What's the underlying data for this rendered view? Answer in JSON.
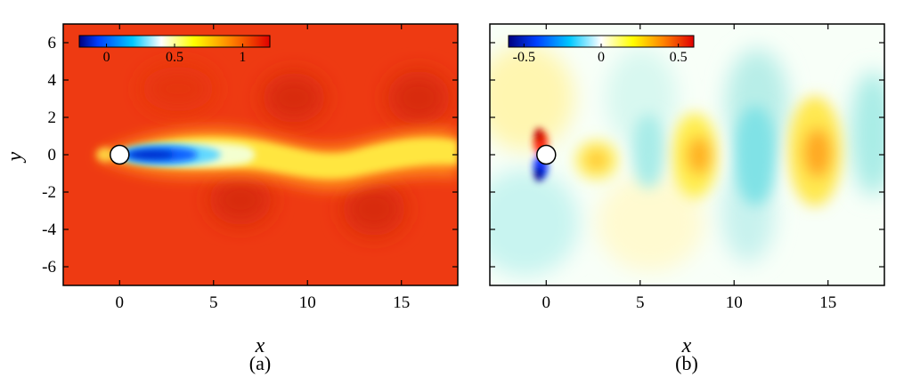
{
  "chart_data": [
    {
      "type": "heatmap",
      "caption": "(a)",
      "xlabel": "x",
      "ylabel": "y",
      "xlim": [
        -3,
        18
      ],
      "ylim": [
        -7,
        7
      ],
      "xticks": [
        0,
        5,
        10,
        15
      ],
      "yticks": [
        -6,
        -4,
        -2,
        0,
        2,
        4,
        6
      ],
      "colorbar": {
        "min": -0.2,
        "max": 1.2,
        "ticks": [
          0,
          0.5,
          1
        ],
        "tick_labels": [
          "0",
          "0.5",
          "1"
        ]
      },
      "field_description": "",
      "cylinder": {
        "x": 0,
        "y": 0,
        "diameter": 1
      }
    },
    {
      "type": "heatmap",
      "caption": "(b)",
      "xlabel": "x",
      "ylabel": "",
      "xlim": [
        -3,
        18
      ],
      "ylim": [
        -7,
        7
      ],
      "xticks": [
        0,
        5,
        10,
        15
      ],
      "yticks": [
        -6,
        -4,
        -2,
        0,
        2,
        4,
        6
      ],
      "colorbar": {
        "min": -0.6,
        "max": 0.6,
        "ticks": [
          -0.5,
          0,
          0.5
        ],
        "tick_labels": [
          "-0.5",
          "0",
          "0.5"
        ]
      },
      "cylinder": {
        "x": 0,
        "y": 0,
        "diameter": 1
      }
    }
  ],
  "colors": {
    "jet_stops": [
      "#00007f",
      "#0040ff",
      "#00c8ff",
      "#ffffff",
      "#ffff00",
      "#ff8000",
      "#e00000"
    ],
    "panel_a_background": "#ee3a12",
    "panel_b_background": "#f8fff8"
  }
}
